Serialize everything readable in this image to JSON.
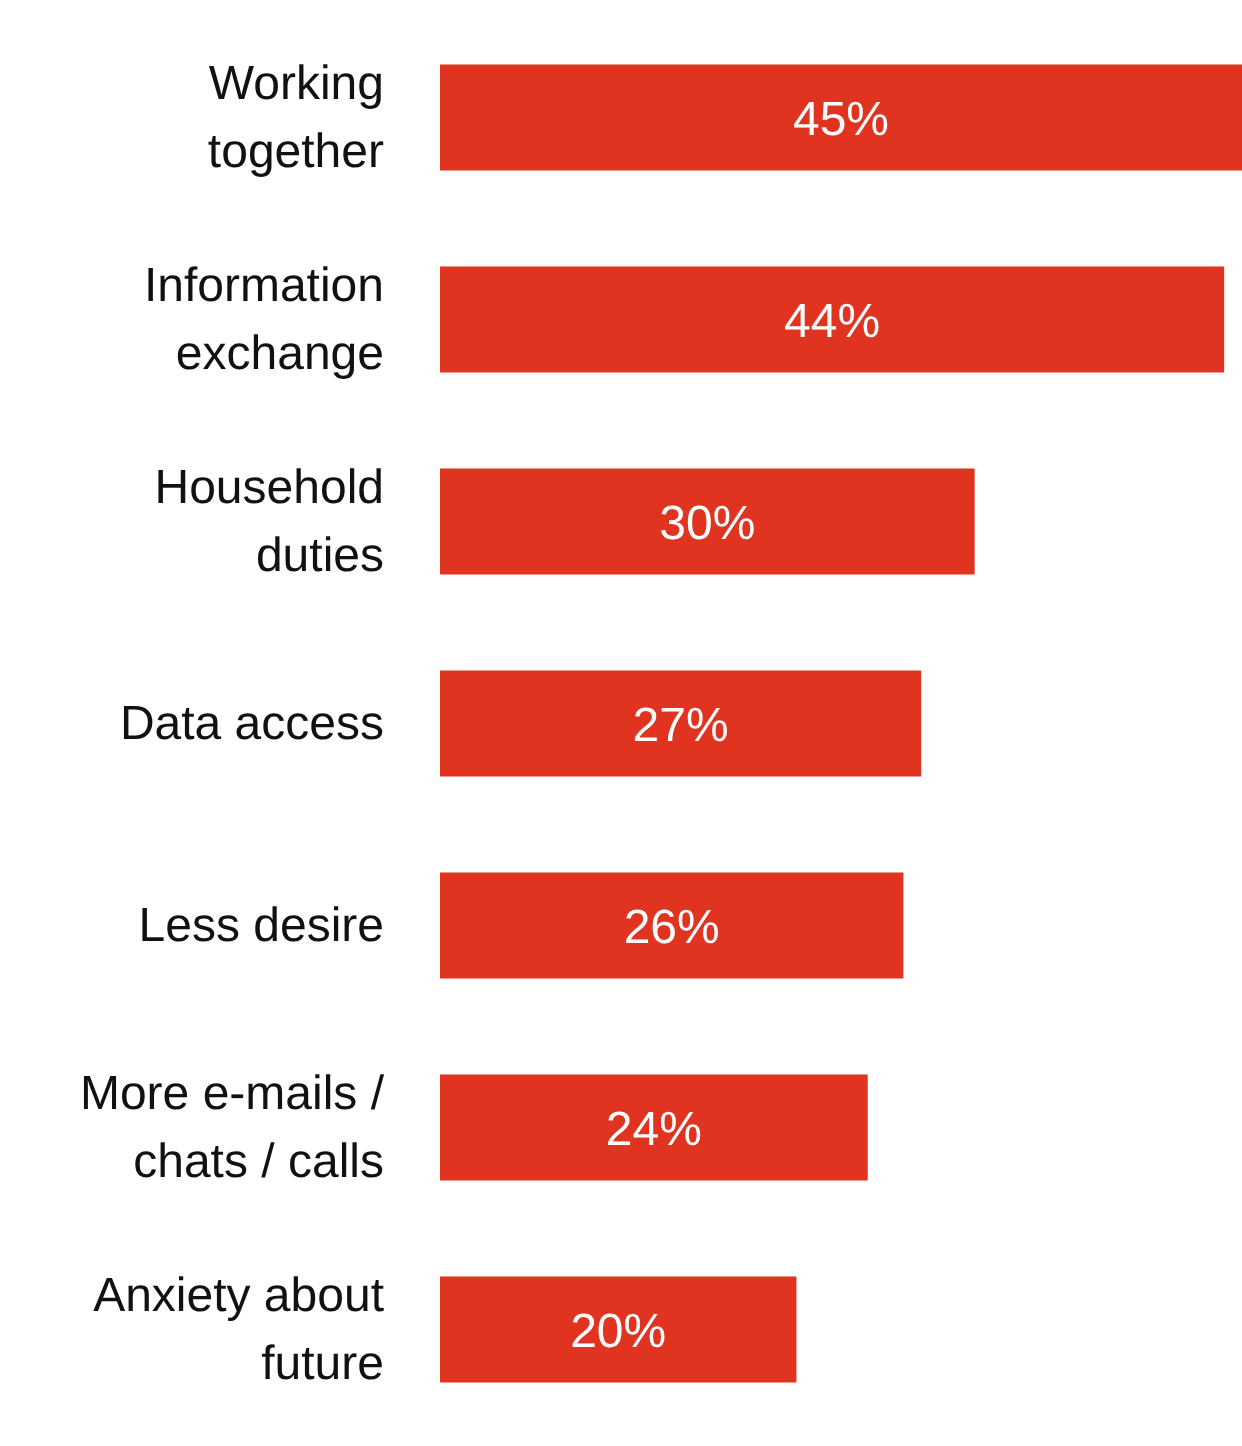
{
  "chart_data": {
    "type": "bar",
    "orientation": "horizontal",
    "categories": [
      "Working together",
      "Information exchange",
      "Household duties",
      "Data access",
      "Less desire",
      "More e-mails / chats / calls",
      "Anxiety about future"
    ],
    "values": [
      45,
      44,
      30,
      27,
      26,
      24,
      20
    ],
    "value_labels": [
      "45%",
      "44%",
      "30%",
      "27%",
      "26%",
      "24%",
      "20%"
    ],
    "color": "#e03320",
    "grid": false,
    "legend": false
  }
}
